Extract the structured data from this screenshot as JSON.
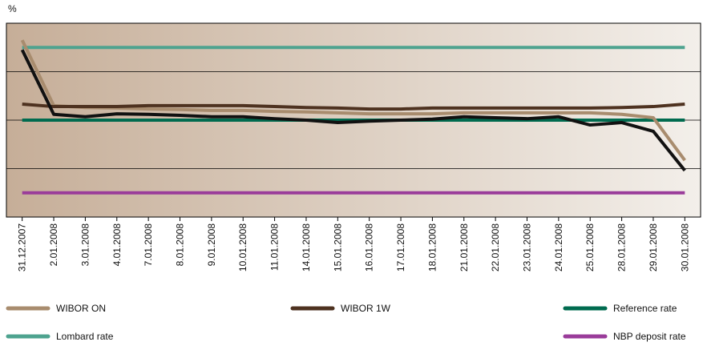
{
  "chart_data": {
    "type": "line",
    "y_label": "%",
    "categories": [
      "31.12.2007",
      "2.01.2008",
      "3.01.2008",
      "4.01.2008",
      "7.01.2008",
      "8.01.2008",
      "9.01.2008",
      "10.01.2008",
      "11.01.2008",
      "14.01.2008",
      "15.01.2008",
      "16.01.2008",
      "17.01.2008",
      "18.01.2008",
      "21.01.2008",
      "22.01.2008",
      "23.01.2008",
      "24.01.2008",
      "25.01.2008",
      "28.01.2008",
      "29.01.2008",
      "30.01.2008"
    ],
    "ylim": [
      2,
      6
    ],
    "yticks": [
      2,
      3,
      4,
      5,
      6
    ],
    "grid": true,
    "series": [
      {
        "name": "WIBOR ON",
        "color": "#a88c6e",
        "values": [
          5.65,
          4.3,
          4.26,
          4.25,
          4.23,
          4.22,
          4.2,
          4.2,
          4.18,
          4.17,
          4.15,
          4.13,
          4.13,
          4.13,
          4.15,
          4.15,
          4.15,
          4.15,
          4.15,
          4.12,
          4.05,
          3.17
        ]
      },
      {
        "name": "WIBOR 1W",
        "color": "#4e3220",
        "values": [
          4.33,
          4.28,
          4.28,
          4.28,
          4.3,
          4.3,
          4.3,
          4.3,
          4.28,
          4.26,
          4.25,
          4.23,
          4.23,
          4.25,
          4.25,
          4.25,
          4.25,
          4.25,
          4.25,
          4.26,
          4.28,
          4.33
        ]
      },
      {
        "name": "Reference rate",
        "color": "#006b4f",
        "values": [
          4,
          4,
          4,
          4,
          4,
          4,
          4,
          4,
          4,
          4,
          4,
          4,
          4,
          4,
          4,
          4,
          4,
          4,
          4,
          4,
          4,
          4
        ]
      },
      {
        "name": "Lombard rate",
        "color": "#4ea38f",
        "values": [
          5.5,
          5.5,
          5.5,
          5.5,
          5.5,
          5.5,
          5.5,
          5.5,
          5.5,
          5.5,
          5.5,
          5.5,
          5.5,
          5.5,
          5.5,
          5.5,
          5.5,
          5.5,
          5.5,
          5.5,
          5.5,
          5.5
        ]
      },
      {
        "name": "NBP deposit rate",
        "color": "#9a3c9a",
        "values": [
          2.5,
          2.5,
          2.5,
          2.5,
          2.5,
          2.5,
          2.5,
          2.5,
          2.5,
          2.5,
          2.5,
          2.5,
          2.5,
          2.5,
          2.5,
          2.5,
          2.5,
          2.5,
          2.5,
          2.5,
          2.5,
          2.5
        ]
      },
      {
        "color": "#111111",
        "values": [
          5.45,
          4.12,
          4.07,
          4.13,
          4.12,
          4.1,
          4.07,
          4.07,
          4.03,
          4,
          3.95,
          3.98,
          4,
          4.02,
          4.07,
          4.05,
          4.03,
          4.07,
          3.9,
          3.95,
          3.77,
          2.96
        ]
      }
    ]
  }
}
